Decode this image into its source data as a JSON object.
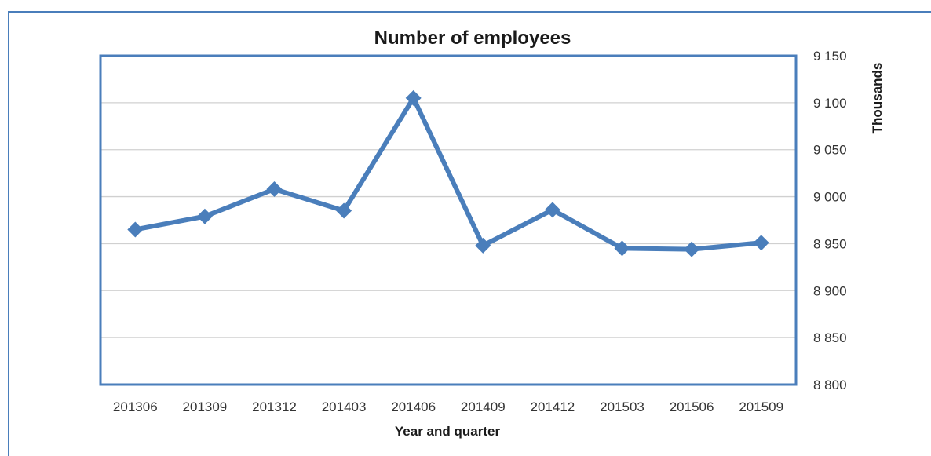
{
  "chart_data": {
    "type": "line",
    "title": "Number of employees",
    "xlabel": "Year and quarter",
    "ylabel": "Thousands",
    "categories": [
      "201306",
      "201309",
      "201312",
      "201403",
      "201406",
      "201409",
      "201412",
      "201503",
      "201506",
      "201509"
    ],
    "series": [
      {
        "values": [
          8965,
          8979,
          9008,
          8985,
          9105,
          8948,
          8986,
          8945,
          8944,
          8951
        ]
      }
    ],
    "ylim": [
      8800,
      9150
    ],
    "yticks": [
      8800,
      8850,
      8900,
      8950,
      9000,
      9050,
      9100,
      9150
    ],
    "ytick_labels": [
      "8 800",
      "8 850",
      "8 900",
      "8 950",
      "9 000",
      "9 050",
      "9 100",
      "9 150"
    ],
    "y_axis_side": "right",
    "grid": true,
    "colors": {
      "line": "#4a7ebb",
      "plot_border": "#4a7ebb",
      "grid": "#d0d0d0"
    }
  }
}
